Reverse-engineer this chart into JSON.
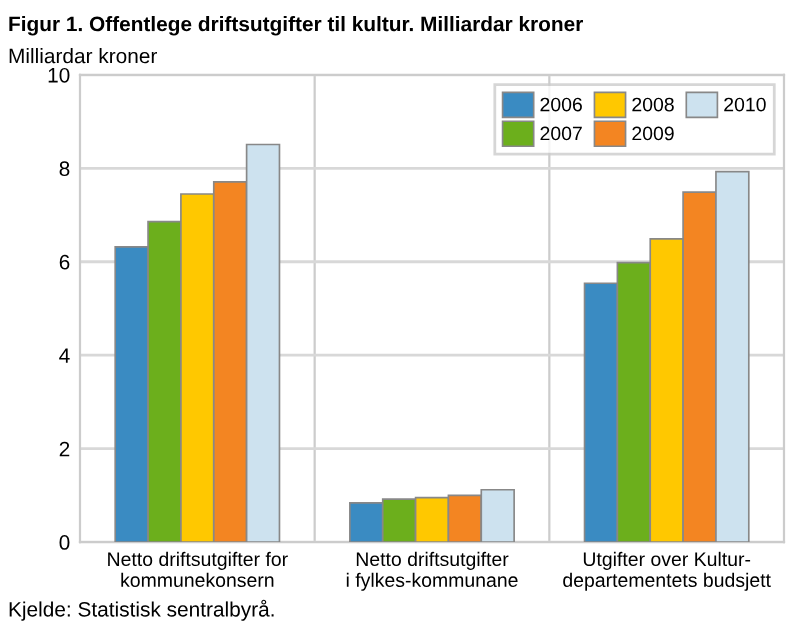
{
  "chart_data": {
    "type": "bar",
    "title": "Figur 1. Offentlege driftsutgifter til kultur. Milliardar kroner",
    "ylabel": "Milliardar kroner",
    "categories": [
      "Netto driftsutgifter for\nkommunekonsern",
      "Netto driftsutgifter\ni fylkes-kommunane",
      "Utgifter over Kultur-\ndepartementets budsjett"
    ],
    "series": [
      {
        "name": "2006",
        "color": "#3a8bc2",
        "values": [
          6.32,
          0.84,
          5.54
        ]
      },
      {
        "name": "2007",
        "color": "#6caf1c",
        "values": [
          6.86,
          0.92,
          5.98
        ]
      },
      {
        "name": "2008",
        "color": "#ffc800",
        "values": [
          7.45,
          0.95,
          6.49
        ]
      },
      {
        "name": "2009",
        "color": "#f38522",
        "values": [
          7.71,
          1.0,
          7.49
        ]
      },
      {
        "name": "2010",
        "color": "#cde2ef",
        "values": [
          8.51,
          1.12,
          7.93
        ]
      }
    ],
    "ylim": [
      0,
      10
    ],
    "yticks": [
      0,
      2,
      4,
      6,
      8,
      10
    ],
    "grid": true,
    "legend": "top right",
    "annotations": [
      "Kjelde: Statistisk sentralbyrå."
    ]
  }
}
